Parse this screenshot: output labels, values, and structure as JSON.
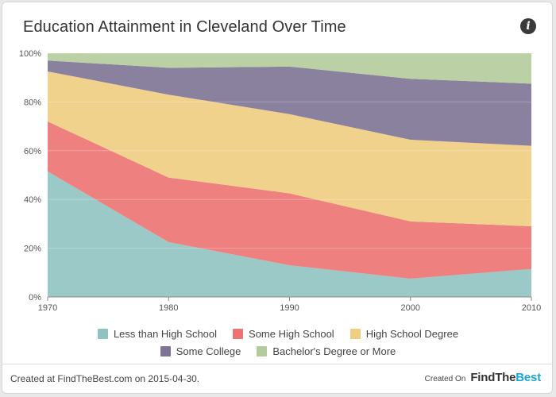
{
  "header": {
    "title": "Education Attainment in Cleveland Over Time",
    "info_icon": "info-icon"
  },
  "chart_data": {
    "type": "area",
    "stacked": true,
    "title": "Education Attainment in Cleveland Over Time",
    "xlabel": "",
    "ylabel": "",
    "x": [
      1970,
      1980,
      1990,
      2000,
      2010
    ],
    "ylim": [
      0,
      100
    ],
    "yticks": [
      "0%",
      "20%",
      "40%",
      "60%",
      "80%",
      "100%"
    ],
    "xticks": [
      "1970",
      "1980",
      "1990",
      "2000",
      "2010"
    ],
    "grid": true,
    "legend_position": "bottom",
    "series": [
      {
        "name": "Less than High School",
        "color": "#8fc3c1",
        "values": [
          51.5,
          22.5,
          13,
          7.5,
          11.5
        ]
      },
      {
        "name": "Some High School",
        "color": "#ec7372",
        "values": [
          20.5,
          26.5,
          29.5,
          23.5,
          17.5
        ]
      },
      {
        "name": "High School Degree",
        "color": "#efcd81",
        "values": [
          20.5,
          34,
          32.5,
          33.5,
          33
        ]
      },
      {
        "name": "Some College",
        "color": "#7d7395",
        "values": [
          4.5,
          11,
          19.5,
          25,
          25.5
        ]
      },
      {
        "name": "Bachelor's Degree or More",
        "color": "#b4cb9b",
        "values": [
          3,
          6,
          5.5,
          10.5,
          12.5
        ]
      }
    ]
  },
  "footer": {
    "created_text": "Created at FindTheBest.com on 2015-04-30.",
    "created_on": "Created On",
    "brand_find": "Find",
    "brand_the": "The",
    "brand_best": "Best",
    "brand_accent": "#1aa6d6"
  }
}
